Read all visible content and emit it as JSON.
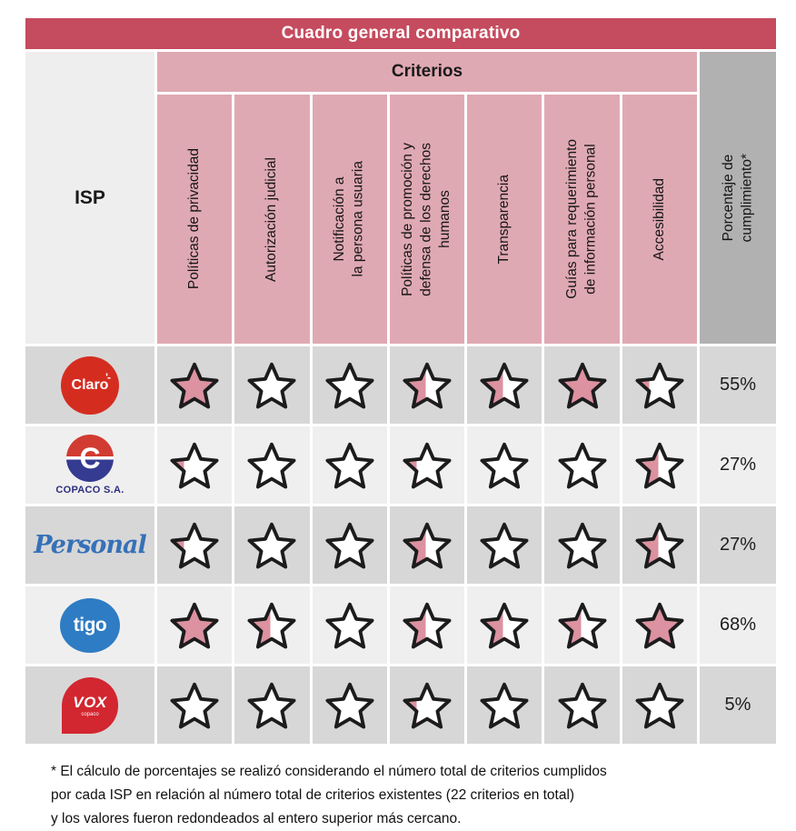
{
  "title": "Cuadro general comparativo",
  "header": {
    "isp": "ISP",
    "criterios": "Criterios",
    "percent": "Porcentaje de\ncumplimiento*"
  },
  "criteria": [
    "Políticas de privacidad",
    "Autorización judicial",
    "Notificación a\nla persona usuaria",
    "Políticas de promoción y\ndefensa de los derechos\nhumanos",
    "Transparencia",
    "Guías para requerimiento\nde información personal",
    "Accesibilidad"
  ],
  "rows": [
    {
      "isp": "Claro",
      "logo": "claro",
      "stars": [
        1,
        0,
        0,
        0.5,
        0.5,
        1,
        0.25
      ],
      "percent": "55%"
    },
    {
      "isp": "COPACO S.A.",
      "logo": "copaco",
      "stars": [
        0.25,
        0,
        0,
        0.25,
        0,
        0,
        0.5
      ],
      "percent": "27%"
    },
    {
      "isp": "Personal",
      "logo": "personal",
      "stars": [
        0.25,
        0,
        0,
        0.5,
        0,
        0,
        0.5
      ],
      "percent": "27%"
    },
    {
      "isp": "Tigo",
      "logo": "tigo",
      "stars": [
        1,
        0.5,
        0,
        0.5,
        0.5,
        0.5,
        1
      ],
      "percent": "68%"
    },
    {
      "isp": "VOX",
      "logo": "vox",
      "stars": [
        0,
        0,
        0,
        0.25,
        0,
        0,
        0
      ],
      "percent": "5%"
    }
  ],
  "logos": {
    "claro_text": "Claro",
    "claro_spark": "'-",
    "copaco_initial": "C",
    "copaco_label": "COPACO S.A.",
    "personal_text": "Personal",
    "tigo_text": "tigo",
    "vox_text": "VOX",
    "vox_sub": "copaco"
  },
  "footnote": "* El cálculo de porcentajes se realizó considerando el número total de criterios cumplidos\npor cada ISP en relación al número total de criterios existentes (22 criterios en total)\ny los valores fueron redondeados al entero superior más cercano.",
  "colors": {
    "title_bar": "#c54b5e",
    "criteria_header": "#dfa9b3",
    "percent_header": "#b2b1b1",
    "row_dark": "#d8d7d7",
    "row_light": "#f0efef",
    "star_fill": "#dc92a0",
    "star_outline": "#1c1c1c"
  },
  "chart_data": {
    "type": "table",
    "title": "Cuadro general comparativo",
    "columns": [
      "Políticas de privacidad",
      "Autorización judicial",
      "Notificación a la persona usuaria",
      "Políticas de promoción y defensa de los derechos humanos",
      "Transparencia",
      "Guías para requerimiento de información personal",
      "Accesibilidad",
      "Porcentaje de cumplimiento*"
    ],
    "rows": [
      {
        "isp": "Claro",
        "ratings": [
          1,
          0,
          0,
          0.5,
          0.5,
          1,
          0.25
        ],
        "porcentaje": "55%"
      },
      {
        "isp": "COPACO S.A.",
        "ratings": [
          0.25,
          0,
          0,
          0.25,
          0,
          0,
          0.5
        ],
        "porcentaje": "27%"
      },
      {
        "isp": "Personal",
        "ratings": [
          0.25,
          0,
          0,
          0.5,
          0,
          0,
          0.5
        ],
        "porcentaje": "27%"
      },
      {
        "isp": "Tigo",
        "ratings": [
          1,
          0.5,
          0,
          0.5,
          0.5,
          0.5,
          1
        ],
        "porcentaje": "68%"
      },
      {
        "isp": "VOX",
        "ratings": [
          0,
          0,
          0,
          0.25,
          0,
          0,
          0
        ],
        "porcentaje": "5%"
      }
    ],
    "legend": "star fill fraction: 1 = full star, 0.5 = half star, 0.25 = quarter star, 0 = empty star"
  }
}
